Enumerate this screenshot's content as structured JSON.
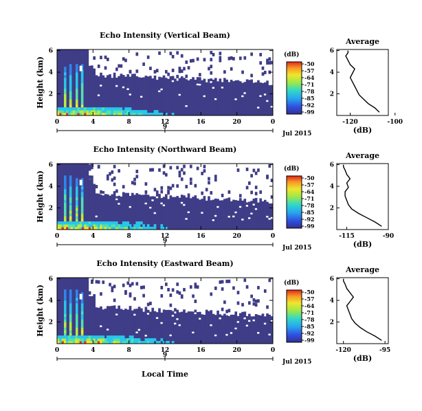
{
  "colors": {
    "background": "#3f3d87",
    "weak": "#3c4fd0",
    "strong": "#ffe820",
    "peak": "#e83020"
  },
  "x_axis_label": "Local Time",
  "colorbar": {
    "unit": "(dB)",
    "ticks": [
      "-50",
      "-57",
      "-64",
      "-71",
      "-78",
      "-85",
      "-92",
      "-99"
    ]
  },
  "chart_data": [
    {
      "type": "heatmap",
      "title": "Echo Intensity (Vertical Beam)",
      "ylabel": "Height (km)",
      "yticks": [
        "2",
        "4",
        "6"
      ],
      "xticks": [
        "0",
        "4",
        "8",
        "12",
        "16",
        "20",
        "0"
      ],
      "date_label": "9",
      "date_right": "Jul 2015",
      "colorbar_range_db": [
        -99,
        -50
      ],
      "profile": {
        "title": "Average",
        "xlabel": "(dB)",
        "xticks": [
          "-120",
          "-100"
        ],
        "yticks": [
          "2",
          "4",
          "6"
        ],
        "x": [
          -107,
          -109,
          -112,
          -114,
          -116,
          -117,
          -118,
          -119,
          -120,
          -119,
          -118,
          -120,
          -121,
          -122,
          -121,
          -121
        ],
        "y": [
          0.3,
          0.7,
          1.1,
          1.5,
          1.9,
          2.3,
          2.7,
          3.1,
          3.5,
          3.9,
          4.3,
          4.7,
          5.1,
          5.5,
          5.8,
          6.0
        ]
      }
    },
    {
      "type": "heatmap",
      "title": "Echo Intensity (Northward Beam)",
      "ylabel": "Height (km)",
      "yticks": [
        "2",
        "4",
        "6"
      ],
      "xticks": [
        "0",
        "4",
        "8",
        "12",
        "16",
        "20",
        "0"
      ],
      "date_label": "9",
      "date_right": "Jul 2015",
      "colorbar_range_db": [
        -99,
        -50
      ],
      "profile": {
        "title": "Average",
        "xlabel": "(dB)",
        "xticks": [
          "-115",
          "-90"
        ],
        "yticks": [
          "2",
          "4",
          "6"
        ],
        "x": [
          -94,
          -98,
          -103,
          -108,
          -112,
          -114,
          -115,
          -116,
          -116,
          -114,
          -115,
          -113,
          -115,
          -116,
          -117,
          -117
        ],
        "y": [
          0.3,
          0.7,
          1.1,
          1.5,
          1.9,
          2.3,
          2.7,
          3.1,
          3.5,
          3.9,
          4.3,
          4.7,
          5.1,
          5.5,
          5.8,
          6.0
        ]
      }
    },
    {
      "type": "heatmap",
      "title": "Echo Intensity (Eastward Beam)",
      "ylabel": "Height (km)",
      "yticks": [
        "2",
        "4",
        "6"
      ],
      "xticks": [
        "0",
        "4",
        "8",
        "12",
        "16",
        "20",
        "0"
      ],
      "date_label": "9",
      "date_right": "Jul 2015",
      "colorbar_range_db": [
        -99,
        -50
      ],
      "profile": {
        "title": "Average",
        "xlabel": "(dB)",
        "xticks": [
          "-120",
          "-95"
        ],
        "yticks": [
          "2",
          "4",
          "6"
        ],
        "x": [
          -97,
          -101,
          -106,
          -110,
          -113,
          -115,
          -116,
          -117,
          -118,
          -116,
          -114,
          -116,
          -118,
          -119,
          -120,
          -120
        ],
        "y": [
          0.3,
          0.7,
          1.1,
          1.5,
          1.9,
          2.3,
          2.7,
          3.1,
          3.5,
          3.9,
          4.3,
          4.7,
          5.1,
          5.5,
          5.8,
          6.0
        ]
      }
    }
  ]
}
